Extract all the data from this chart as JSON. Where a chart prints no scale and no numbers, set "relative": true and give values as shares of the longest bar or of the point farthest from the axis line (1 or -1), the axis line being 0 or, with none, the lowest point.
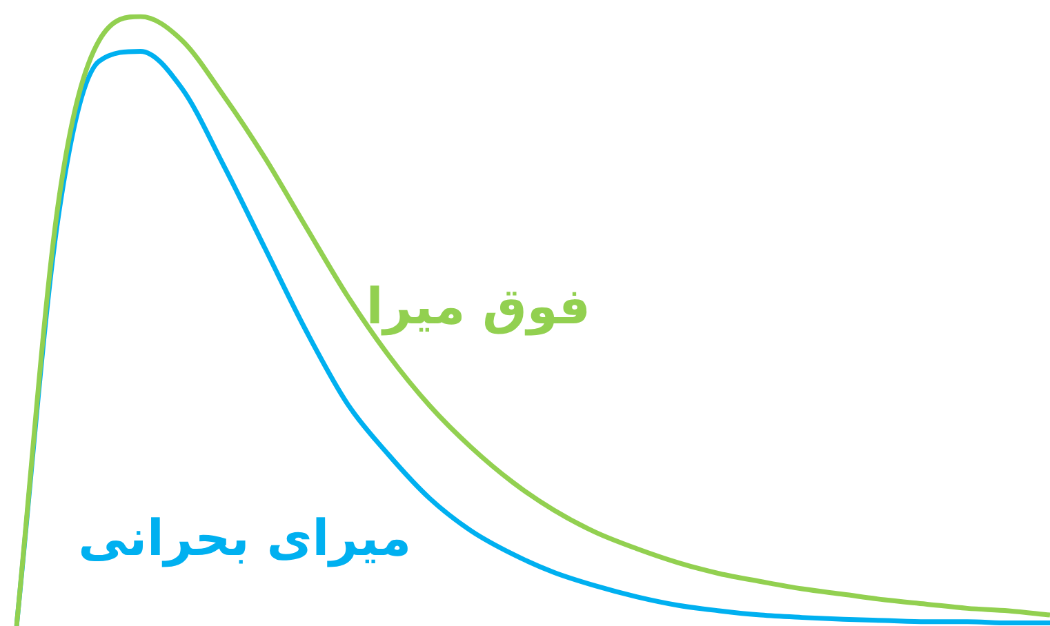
{
  "chart_data": {
    "type": "line",
    "relative": true,
    "categories": [
      null,
      null,
      null,
      null,
      null,
      null,
      null,
      null,
      null,
      null,
      null,
      null,
      null,
      null,
      null,
      null,
      null,
      null,
      null,
      null,
      null,
      null,
      null,
      null,
      null,
      null
    ],
    "marker": "none",
    "line_style": "solid",
    "legend": false,
    "series": [
      {
        "name": "فوق میرا",
        "color": "#92d050",
        "values": [
          0,
          0.689,
          0.961,
          1,
          0.961,
          0.871,
          0.769,
          0.655,
          0.542,
          0.444,
          0.361,
          0.293,
          0.236,
          0.19,
          0.154,
          0.127,
          0.104,
          0.086,
          0.073,
          0.061,
          0.052,
          0.043,
          0.036,
          0.029,
          0.025,
          0.018
        ]
      },
      {
        "name": "میرای بحرانی",
        "color": "#00b0f0",
        "values": [
          0,
          0.667,
          0.927,
          0.943,
          0.882,
          0.757,
          0.621,
          0.485,
          0.365,
          0.281,
          0.209,
          0.156,
          0.118,
          0.088,
          0.066,
          0.048,
          0.034,
          0.025,
          0.018,
          0.014,
          0.011,
          0.009,
          0.007,
          0.007,
          0.005,
          0.005
        ]
      }
    ]
  }
}
